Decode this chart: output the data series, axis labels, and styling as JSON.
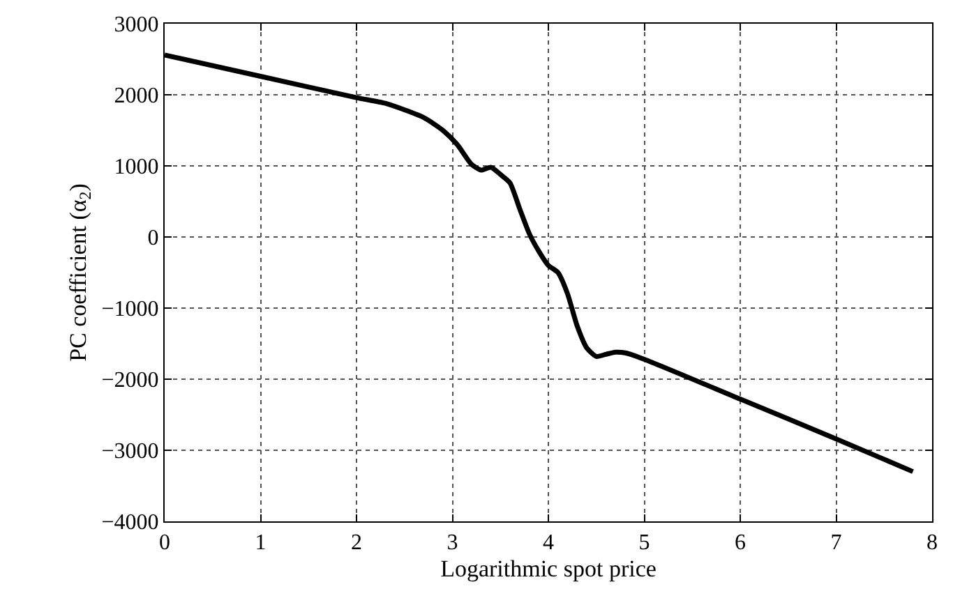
{
  "chart_data": {
    "type": "line",
    "xlabel": "Logarithmic spot price",
    "ylabel": "PC coefficient (α$_{2}$)",
    "x": [
      0,
      1,
      2,
      2.3,
      2.7,
      2.9,
      3.05,
      3.2,
      3.3,
      3.4,
      3.5,
      3.6,
      3.7,
      3.8,
      3.9,
      4.0,
      4.1,
      4.2,
      4.3,
      4.4,
      4.5,
      4.6,
      4.7,
      4.8,
      5,
      6,
      7,
      7.8
    ],
    "series": [
      {
        "color": "#000000",
        "values": [
          2560,
          2260,
          1960,
          1880,
          1680,
          1500,
          1300,
          1020,
          940,
          980,
          880,
          760,
          400,
          50,
          -200,
          -400,
          -500,
          -800,
          -1250,
          -1560,
          -1680,
          -1650,
          -1620,
          -1630,
          -1720,
          -2280,
          -2840,
          -3300
        ]
      }
    ],
    "xlim": [
      0,
      8
    ],
    "xticks": [
      0,
      1,
      2,
      3,
      4,
      5,
      6,
      7,
      8
    ],
    "ylim": [
      -4000,
      3000
    ],
    "yticks": [
      {
        "value": -4000,
        "label": "−4000"
      },
      {
        "value": -3000,
        "label": "−3000"
      },
      {
        "value": -2000,
        "label": "−2000"
      },
      {
        "value": -1000,
        "label": "−1000"
      },
      0,
      1000,
      2000,
      3000
    ],
    "grid": true,
    "line_style": "solid",
    "marker": "none",
    "legend": false
  }
}
